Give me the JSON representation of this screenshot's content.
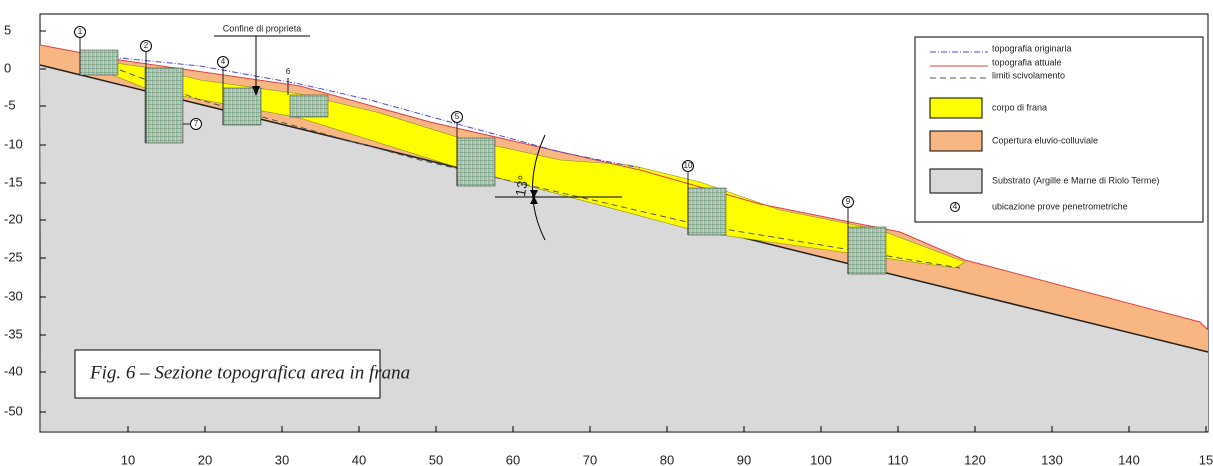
{
  "axes": {
    "y_ticks": [
      "5",
      "0",
      "-5",
      "-10",
      "-15",
      "-20",
      "-25",
      "-30",
      "-35",
      "-40",
      "-50"
    ],
    "x_ticks": [
      "10",
      "20",
      "30",
      "40",
      "50",
      "60",
      "70",
      "80",
      "90",
      "100",
      "110",
      "120",
      "130",
      "140",
      "15"
    ]
  },
  "annotations": {
    "property_line": "Confine di proprieta",
    "angle": "13°",
    "boreholes": [
      "1",
      "2",
      "4",
      "6",
      "5",
      "10",
      "9",
      "7"
    ]
  },
  "legend": [
    "topografia originaria",
    "topografia attuale",
    "limiti scivolamento",
    "corpo di frana",
    "Copertura eluvio-colluviale",
    "Substrato (Argille e Marne di Riolo Terme)",
    "ubicazione prove penetrometriche"
  ],
  "legend_symbol": "4",
  "caption": "Fig. 6 – Sezione topografica area in frana"
}
